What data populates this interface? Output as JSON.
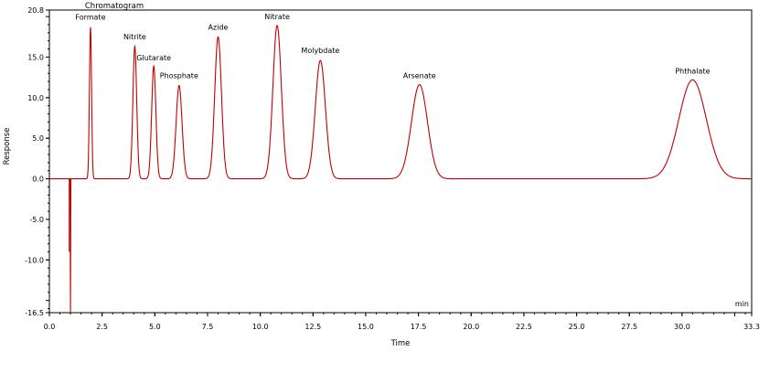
{
  "chart_data": {
    "type": "line",
    "title": "Chromatogram",
    "xlabel": "Time",
    "ylabel": "Response",
    "x_unit": "min",
    "xlim": [
      0.0,
      33.3
    ],
    "ylim": [
      -16.5,
      20.8
    ],
    "x_ticks": [
      "0.0",
      "2.5",
      "5.0",
      "7.5",
      "10.0",
      "12.5",
      "15.0",
      "17.5",
      "20.0",
      "22.5",
      "25.0",
      "27.5",
      "30.0",
      "33.3"
    ],
    "x_tick_values": [
      0.0,
      2.5,
      5.0,
      7.5,
      10.0,
      12.5,
      15.0,
      17.5,
      20.0,
      22.5,
      25.0,
      27.5,
      30.0,
      33.3
    ],
    "y_ticks": [
      "20.8",
      "15.0",
      "10.0",
      "5.0",
      "0.0",
      "-5.0",
      "-10.0",
      "-16.5"
    ],
    "y_tick_values": [
      20.8,
      15.0,
      10.0,
      5.0,
      0.0,
      -5.0,
      -10.0,
      -16.5
    ],
    "grid": false,
    "line_color": "#c00000",
    "baseline": 0.0,
    "dip": {
      "x": 1.0,
      "y": -16.5
    },
    "peaks": [
      {
        "name": "Formate",
        "x": 1.95,
        "y": 18.7,
        "width": 0.05
      },
      {
        "name": "Nitrite",
        "x": 4.05,
        "y": 16.3,
        "width": 0.09
      },
      {
        "name": "Glutarate",
        "x": 4.95,
        "y": 13.9,
        "width": 0.1
      },
      {
        "name": "Phosphate",
        "x": 6.15,
        "y": 11.5,
        "width": 0.14
      },
      {
        "name": "Azide",
        "x": 8.0,
        "y": 17.5,
        "width": 0.16
      },
      {
        "name": "Nitrate",
        "x": 10.8,
        "y": 18.9,
        "width": 0.2
      },
      {
        "name": "Molybdate",
        "x": 12.85,
        "y": 14.6,
        "width": 0.24
      },
      {
        "name": "Arsenate",
        "x": 17.55,
        "y": 11.6,
        "width": 0.38
      },
      {
        "name": "Phthalate",
        "x": 30.5,
        "y": 12.2,
        "width": 0.65
      }
    ]
  }
}
